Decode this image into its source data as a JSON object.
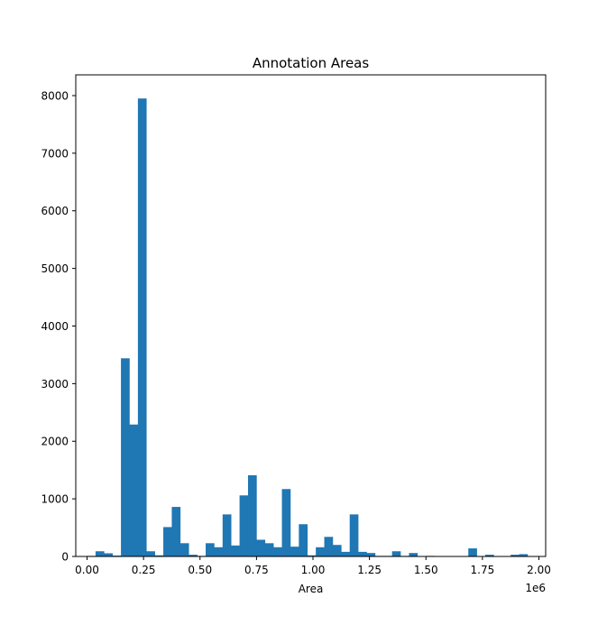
{
  "chart_data": {
    "type": "histogram",
    "title": "Annotation Areas",
    "xlabel": "Area",
    "ylabel": "",
    "x_offset_label": "1e6",
    "xlim": [
      -0.05,
      2.03
    ],
    "ylim": [
      0,
      8360
    ],
    "xticks": [
      0.0,
      0.25,
      0.5,
      0.75,
      1.0,
      1.25,
      1.5,
      1.75,
      2.0
    ],
    "xtick_labels": [
      "0.00",
      "0.25",
      "0.50",
      "0.75",
      "1.00",
      "1.25",
      "1.50",
      "1.75",
      "2.00"
    ],
    "yticks": [
      0,
      1000,
      2000,
      3000,
      4000,
      5000,
      6000,
      7000,
      8000
    ],
    "ytick_labels": [
      "0",
      "1000",
      "2000",
      "3000",
      "4000",
      "5000",
      "6000",
      "7000",
      "8000"
    ],
    "bar_color": "#1f77b4",
    "bin_start": 0.0,
    "bin_width": 0.0375,
    "grid": false,
    "values": [
      10,
      90,
      55,
      15,
      3440,
      2290,
      7950,
      90,
      20,
      510,
      860,
      230,
      30,
      10,
      230,
      160,
      730,
      190,
      1060,
      1410,
      290,
      230,
      160,
      1170,
      170,
      560,
      20,
      160,
      340,
      200,
      80,
      730,
      80,
      60,
      10,
      10,
      90,
      10,
      60,
      5,
      10,
      5,
      5,
      5,
      5,
      140,
      5,
      30,
      5,
      5,
      30,
      40
    ]
  }
}
